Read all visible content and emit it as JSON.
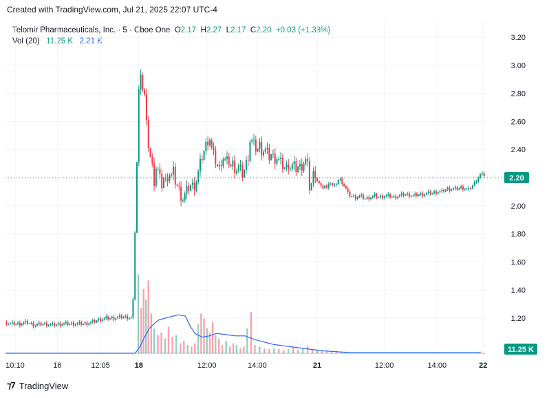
{
  "caption": "Created with TradingView.com, Jul 21, 2025 22:07 UTC-4",
  "legend": {
    "symbol": "Telomir Pharmaceuticals, Inc. · 5 · Cboe One",
    "o_label": "O",
    "o_value": "2.17",
    "h_label": "H",
    "h_value": "2.27",
    "l_label": "L",
    "l_value": "2.17",
    "c_label": "C",
    "c_value": "2.20",
    "change": "+0.03 (+1.38%)",
    "vol_label": "Vol (20)",
    "vol_value": "11.25 K",
    "vol_ma": "2.21 K"
  },
  "price_badge": "2.20",
  "volume_badge": "11.25 K",
  "brand": "TradingView",
  "colors": {
    "up": "#089981",
    "down": "#f23645",
    "vol_ma": "#2962ff",
    "grid": "#f0f3fa"
  },
  "chart_data": {
    "type": "candlestick",
    "symbol": "Telomir Pharmaceuticals, Inc.",
    "interval": "5",
    "exchange": "Cboe One",
    "y_ticks": [
      "3.20",
      "3.00",
      "2.80",
      "2.60",
      "2.40",
      "2.20",
      "2.00",
      "1.80",
      "1.60",
      "1.40",
      "1.20"
    ],
    "ylim": [
      1.05,
      3.28
    ],
    "x_ticks": [
      "10:10",
      "16",
      "12:05",
      "18",
      "12:00",
      "14:00",
      "21",
      "12:00",
      "14:00",
      "22"
    ],
    "last_price": 2.2,
    "last_volume": "11.25 K",
    "price_path": [
      [
        0.0,
        1.17
      ],
      [
        0.01,
        1.16
      ],
      [
        0.03,
        1.16
      ],
      [
        0.045,
        1.17
      ],
      [
        0.06,
        1.15
      ],
      [
        0.08,
        1.16
      ],
      [
        0.1,
        1.15
      ],
      [
        0.115,
        1.16
      ],
      [
        0.135,
        1.16
      ],
      [
        0.15,
        1.16
      ],
      [
        0.165,
        1.16
      ],
      [
        0.18,
        1.17
      ],
      [
        0.195,
        1.19
      ],
      [
        0.21,
        1.2
      ],
      [
        0.225,
        1.2
      ],
      [
        0.245,
        1.21
      ],
      [
        0.265,
        1.2
      ],
      [
        0.28,
        3.05
      ],
      [
        0.285,
        2.85
      ],
      [
        0.29,
        2.78
      ],
      [
        0.295,
        2.52
      ],
      [
        0.3,
        2.38
      ],
      [
        0.305,
        2.3
      ],
      [
        0.31,
        2.18
      ],
      [
        0.315,
        2.3
      ],
      [
        0.32,
        2.22
      ],
      [
        0.325,
        2.14
      ],
      [
        0.33,
        2.2
      ],
      [
        0.335,
        2.16
      ],
      [
        0.34,
        2.25
      ],
      [
        0.345,
        2.2
      ],
      [
        0.35,
        2.24
      ],
      [
        0.355,
        2.16
      ],
      [
        0.36,
        2.13
      ],
      [
        0.365,
        2.08
      ],
      [
        0.37,
        2.05
      ],
      [
        0.375,
        2.08
      ],
      [
        0.38,
        2.12
      ],
      [
        0.385,
        2.15
      ],
      [
        0.39,
        2.14
      ],
      [
        0.395,
        2.15
      ],
      [
        0.4,
        2.2
      ],
      [
        0.405,
        2.28
      ],
      [
        0.41,
        2.35
      ],
      [
        0.415,
        2.4
      ],
      [
        0.42,
        2.45
      ],
      [
        0.425,
        2.5
      ],
      [
        0.43,
        2.4
      ],
      [
        0.435,
        2.35
      ],
      [
        0.44,
        2.3
      ],
      [
        0.445,
        2.25
      ],
      [
        0.45,
        2.32
      ],
      [
        0.455,
        2.35
      ],
      [
        0.46,
        2.3
      ],
      [
        0.465,
        2.33
      ],
      [
        0.47,
        2.28
      ],
      [
        0.475,
        2.3
      ],
      [
        0.48,
        2.25
      ],
      [
        0.485,
        2.28
      ],
      [
        0.49,
        2.25
      ],
      [
        0.495,
        2.22
      ],
      [
        0.5,
        2.28
      ],
      [
        0.505,
        2.33
      ],
      [
        0.51,
        2.47
      ],
      [
        0.515,
        2.45
      ],
      [
        0.52,
        2.42
      ],
      [
        0.525,
        2.4
      ],
      [
        0.53,
        2.43
      ],
      [
        0.535,
        2.39
      ],
      [
        0.54,
        2.4
      ],
      [
        0.545,
        2.38
      ],
      [
        0.55,
        2.35
      ],
      [
        0.555,
        2.37
      ],
      [
        0.56,
        2.33
      ],
      [
        0.565,
        2.35
      ],
      [
        0.57,
        2.32
      ],
      [
        0.575,
        2.3
      ],
      [
        0.58,
        2.28
      ],
      [
        0.585,
        2.26
      ],
      [
        0.59,
        2.3
      ],
      [
        0.595,
        2.27
      ],
      [
        0.6,
        2.29
      ],
      [
        0.605,
        2.26
      ],
      [
        0.61,
        2.28
      ],
      [
        0.615,
        2.27
      ],
      [
        0.62,
        2.3
      ],
      [
        0.625,
        2.33
      ],
      [
        0.63,
        2.28
      ],
      [
        0.635,
        2.1
      ],
      [
        0.64,
        2.2
      ],
      [
        0.645,
        2.25
      ],
      [
        0.65,
        2.18
      ],
      [
        0.655,
        2.15
      ],
      [
        0.66,
        2.12
      ],
      [
        0.665,
        2.15
      ],
      [
        0.67,
        2.12
      ],
      [
        0.675,
        2.18
      ],
      [
        0.68,
        2.15
      ],
      [
        0.685,
        2.13
      ],
      [
        0.69,
        2.16
      ],
      [
        0.695,
        2.19
      ],
      [
        0.7,
        2.18
      ],
      [
        0.705,
        2.15
      ],
      [
        0.71,
        2.12
      ],
      [
        0.715,
        2.08
      ],
      [
        0.72,
        2.07
      ],
      [
        0.73,
        2.06
      ],
      [
        0.74,
        2.07
      ],
      [
        0.75,
        2.05
      ],
      [
        0.76,
        2.06
      ],
      [
        0.77,
        2.07
      ],
      [
        0.78,
        2.06
      ],
      [
        0.79,
        2.07
      ],
      [
        0.8,
        2.07
      ],
      [
        0.81,
        2.06
      ],
      [
        0.82,
        2.07
      ],
      [
        0.83,
        2.08
      ],
      [
        0.84,
        2.08
      ],
      [
        0.85,
        2.07
      ],
      [
        0.86,
        2.08
      ],
      [
        0.87,
        2.08
      ],
      [
        0.88,
        2.09
      ],
      [
        0.89,
        2.09
      ],
      [
        0.9,
        2.1
      ],
      [
        0.91,
        2.1
      ],
      [
        0.92,
        2.12
      ],
      [
        0.93,
        2.12
      ],
      [
        0.94,
        2.12
      ],
      [
        0.95,
        2.13
      ],
      [
        0.96,
        2.12
      ],
      [
        0.965,
        2.11
      ],
      [
        0.97,
        2.13
      ],
      [
        0.975,
        2.15
      ],
      [
        0.98,
        2.17
      ],
      [
        0.985,
        2.2
      ],
      [
        0.99,
        2.22
      ]
    ],
    "volume_ma_path": [
      [
        0.0,
        0.0
      ],
      [
        0.27,
        0.0
      ],
      [
        0.28,
        0.05
      ],
      [
        0.29,
        0.13
      ],
      [
        0.3,
        0.2
      ],
      [
        0.31,
        0.24
      ],
      [
        0.32,
        0.27
      ],
      [
        0.34,
        0.29
      ],
      [
        0.36,
        0.31
      ],
      [
        0.375,
        0.3
      ],
      [
        0.385,
        0.22
      ],
      [
        0.395,
        0.16
      ],
      [
        0.41,
        0.13
      ],
      [
        0.425,
        0.14
      ],
      [
        0.44,
        0.16
      ],
      [
        0.46,
        0.15
      ],
      [
        0.48,
        0.14
      ],
      [
        0.5,
        0.14
      ],
      [
        0.52,
        0.11
      ],
      [
        0.54,
        0.09
      ],
      [
        0.56,
        0.07
      ],
      [
        0.58,
        0.06
      ],
      [
        0.6,
        0.05
      ],
      [
        0.62,
        0.04
      ],
      [
        0.64,
        0.03
      ],
      [
        0.66,
        0.02
      ],
      [
        0.68,
        0.015
      ],
      [
        0.7,
        0.01
      ],
      [
        0.72,
        0.005
      ],
      [
        0.8,
        0.005
      ],
      [
        0.9,
        0.005
      ],
      [
        0.99,
        0.005
      ]
    ],
    "volume_spikes": [
      [
        0.277,
        0.95
      ],
      [
        0.283,
        0.55
      ],
      [
        0.288,
        0.78
      ],
      [
        0.293,
        0.65
      ],
      [
        0.298,
        0.88
      ],
      [
        0.304,
        0.48
      ],
      [
        0.31,
        0.3
      ],
      [
        0.318,
        0.22
      ],
      [
        0.325,
        0.25
      ],
      [
        0.333,
        0.18
      ],
      [
        0.34,
        0.32
      ],
      [
        0.348,
        0.2
      ],
      [
        0.356,
        0.22
      ],
      [
        0.365,
        0.12
      ],
      [
        0.372,
        0.15
      ],
      [
        0.38,
        0.1
      ],
      [
        0.388,
        0.08
      ],
      [
        0.395,
        0.12
      ],
      [
        0.402,
        0.35
      ],
      [
        0.408,
        0.48
      ],
      [
        0.414,
        0.42
      ],
      [
        0.42,
        0.3
      ],
      [
        0.426,
        0.25
      ],
      [
        0.432,
        0.38
      ],
      [
        0.438,
        0.22
      ],
      [
        0.445,
        0.18
      ],
      [
        0.452,
        0.1
      ],
      [
        0.46,
        0.15
      ],
      [
        0.468,
        0.08
      ],
      [
        0.475,
        0.12
      ],
      [
        0.482,
        0.1
      ],
      [
        0.49,
        0.06
      ],
      [
        0.497,
        0.08
      ],
      [
        0.504,
        0.3
      ],
      [
        0.512,
        0.5
      ],
      [
        0.52,
        0.1
      ],
      [
        0.53,
        0.08
      ],
      [
        0.54,
        0.06
      ],
      [
        0.55,
        0.05
      ],
      [
        0.56,
        0.06
      ],
      [
        0.57,
        0.05
      ],
      [
        0.58,
        0.04
      ],
      [
        0.59,
        0.05
      ],
      [
        0.6,
        0.07
      ],
      [
        0.61,
        0.04
      ],
      [
        0.62,
        0.06
      ],
      [
        0.63,
        0.09
      ],
      [
        0.64,
        0.05
      ],
      [
        0.65,
        0.04
      ],
      [
        0.66,
        0.03
      ],
      [
        0.67,
        0.03
      ],
      [
        0.68,
        0.02
      ],
      [
        0.69,
        0.03
      ],
      [
        0.7,
        0.02
      ],
      [
        0.71,
        0.02
      ],
      [
        0.74,
        0.01
      ],
      [
        0.8,
        0.01
      ],
      [
        0.9,
        0.01
      ],
      [
        0.99,
        0.02
      ]
    ]
  }
}
